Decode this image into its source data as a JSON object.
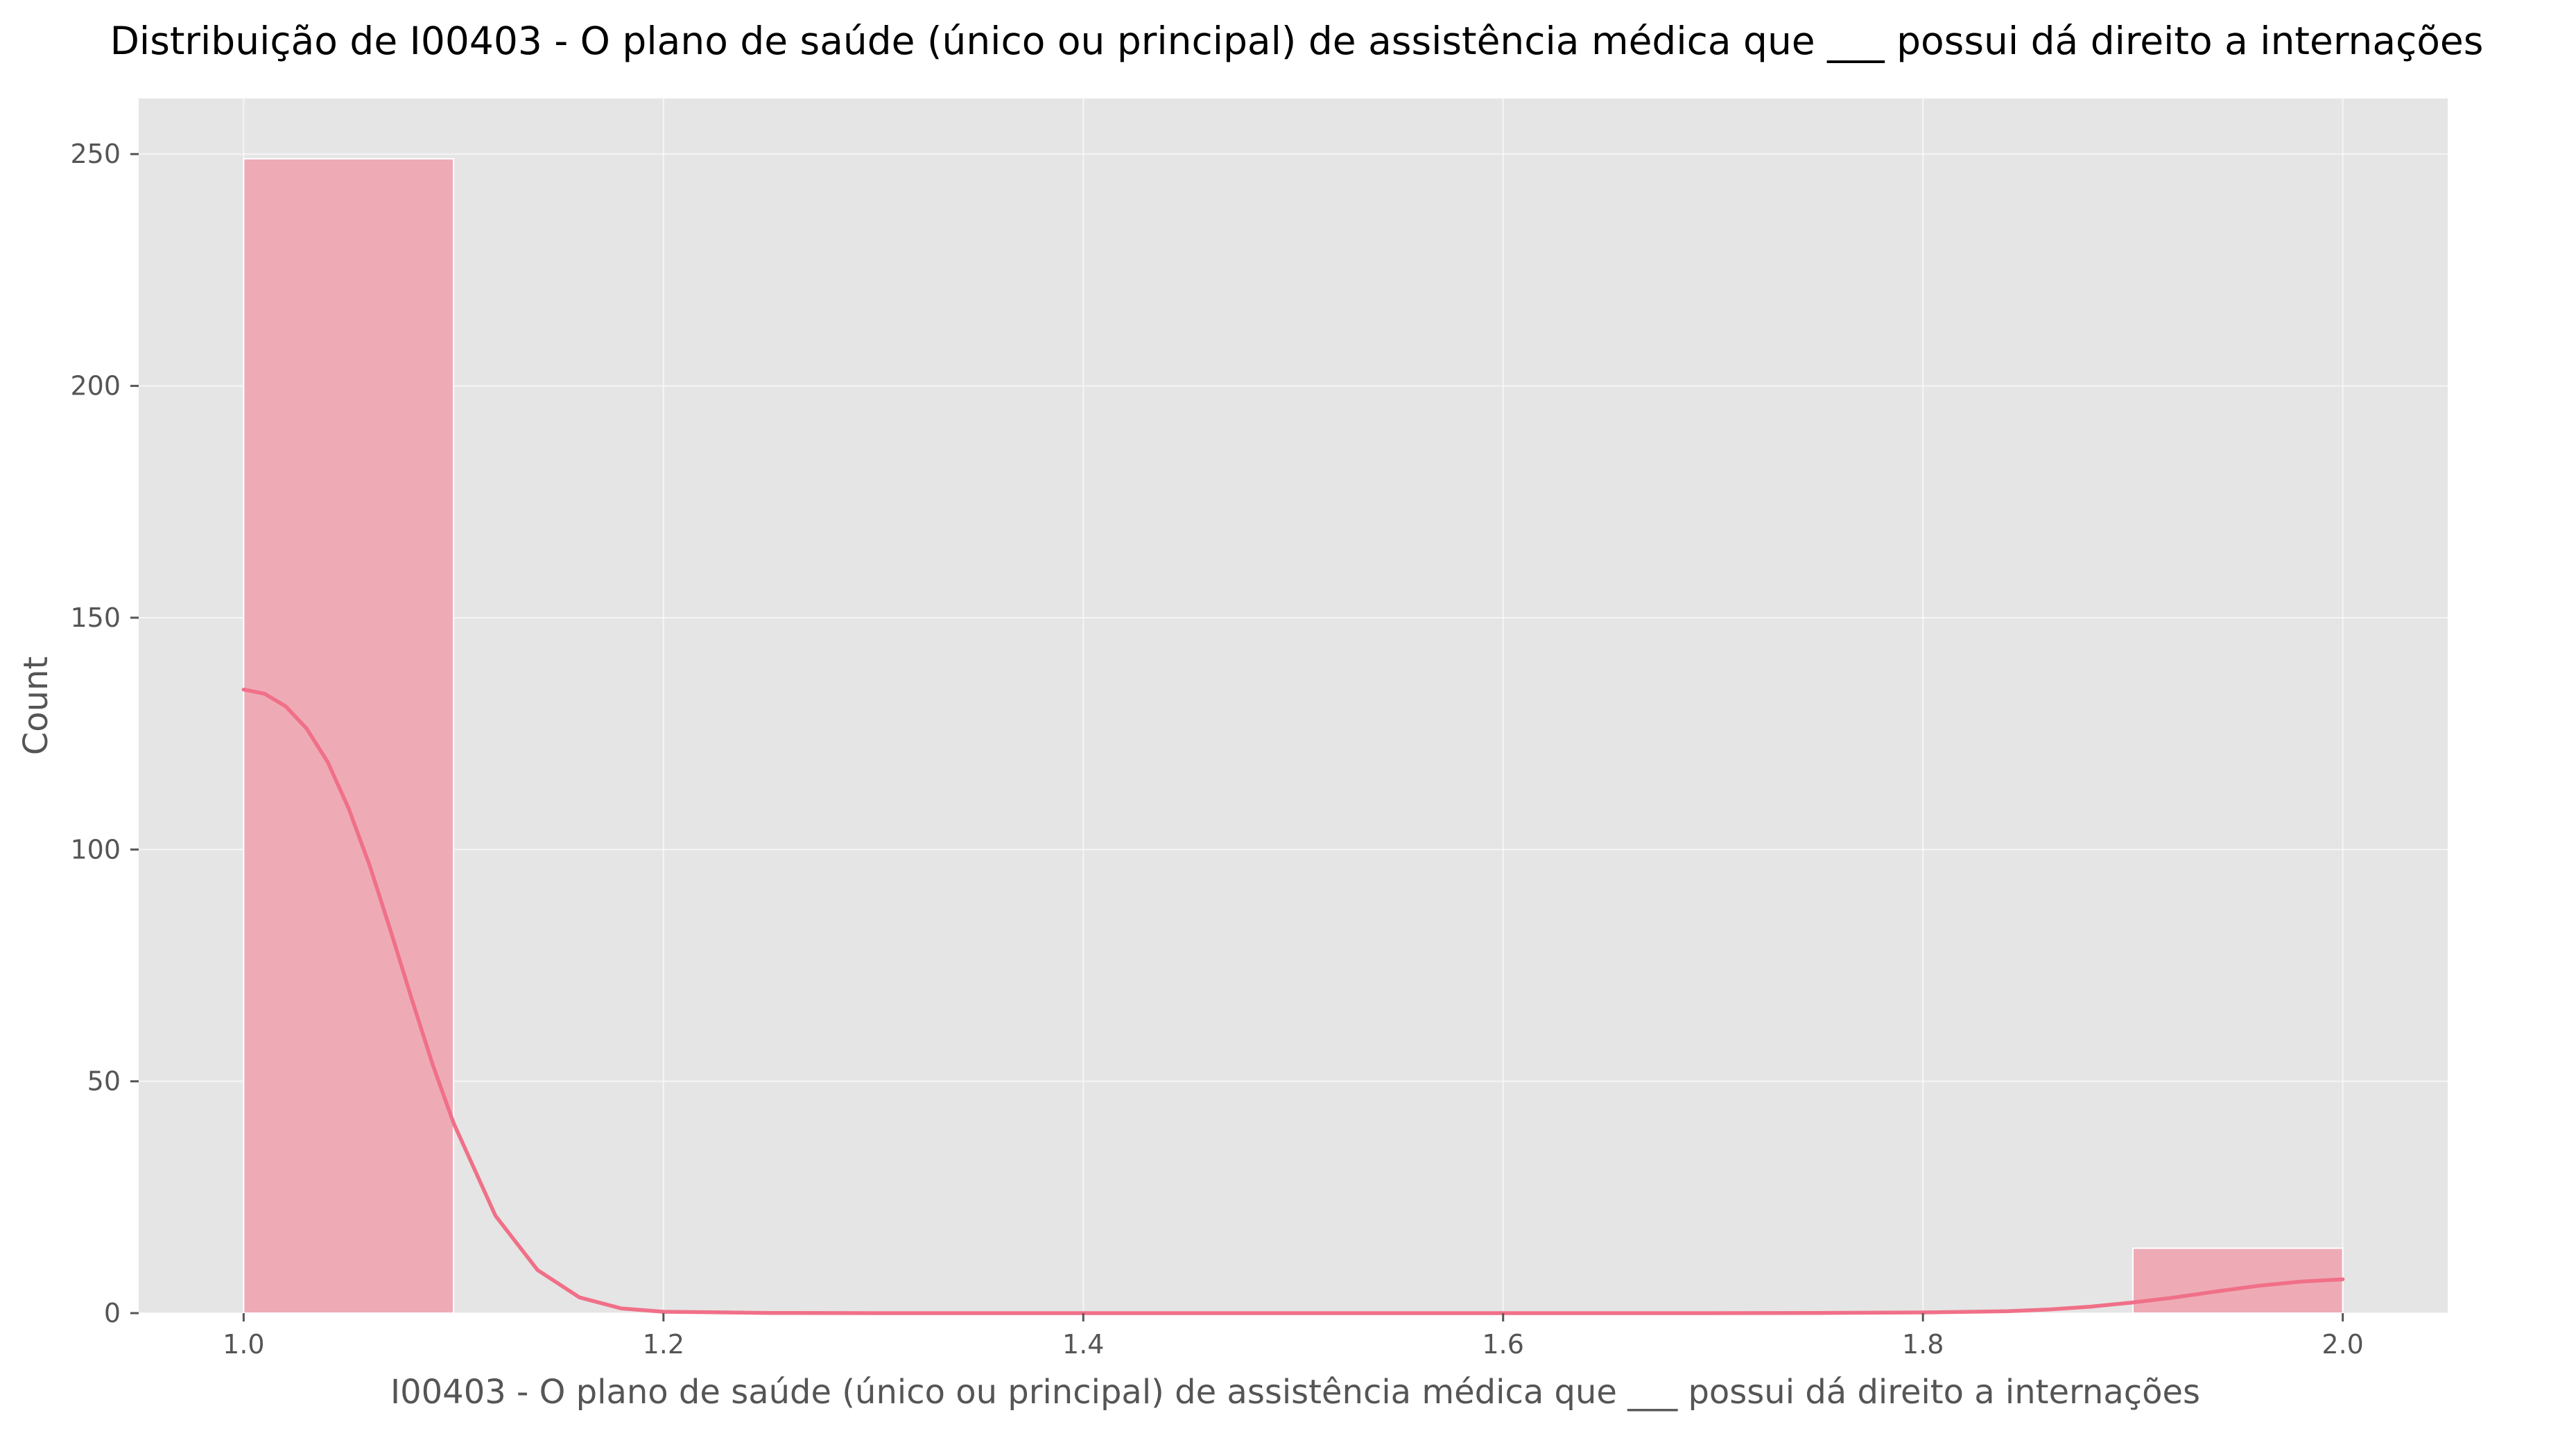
{
  "chart_data": {
    "type": "bar",
    "title": "Distribuição de I00403 - O plano de saúde (único ou principal) de assistência médica que ___ possui dá direito a internações",
    "xlabel": "I00403 - O plano de saúde (único ou principal) de assistência médica que ___ possui dá direito a internações",
    "ylabel": "Count",
    "xlim": [
      0.95,
      2.05
    ],
    "ylim": [
      0,
      262
    ],
    "x_ticks": [
      1.0,
      1.2,
      1.4,
      1.6,
      1.8,
      2.0
    ],
    "x_tick_labels": [
      "1.0",
      "1.2",
      "1.4",
      "1.6",
      "1.8",
      "2.0"
    ],
    "y_ticks": [
      0,
      50,
      100,
      150,
      200,
      250
    ],
    "y_tick_labels": [
      "0",
      "50",
      "100",
      "150",
      "200",
      "250"
    ],
    "grid": true,
    "bins": [
      {
        "x0": 1.0,
        "x1": 1.1,
        "count": 249
      },
      {
        "x0": 1.9,
        "x1": 2.0,
        "count": 14
      }
    ],
    "kde_points": [
      [
        1.0,
        134.5
      ],
      [
        1.01,
        133.6
      ],
      [
        1.02,
        130.9
      ],
      [
        1.03,
        126.1
      ],
      [
        1.04,
        118.9
      ],
      [
        1.05,
        108.9
      ],
      [
        1.06,
        96.6
      ],
      [
        1.07,
        82.5
      ],
      [
        1.08,
        67.9
      ],
      [
        1.09,
        53.7
      ],
      [
        1.1,
        41.0
      ],
      [
        1.12,
        21.0
      ],
      [
        1.14,
        9.3
      ],
      [
        1.16,
        3.4
      ],
      [
        1.18,
        1.0
      ],
      [
        1.2,
        0.3
      ],
      [
        1.25,
        0.05
      ],
      [
        1.3,
        0.0
      ],
      [
        1.4,
        0.0
      ],
      [
        1.5,
        0.0
      ],
      [
        1.6,
        0.0
      ],
      [
        1.7,
        0.0
      ],
      [
        1.75,
        0.05
      ],
      [
        1.8,
        0.15
      ],
      [
        1.84,
        0.4
      ],
      [
        1.86,
        0.8
      ],
      [
        1.88,
        1.4
      ],
      [
        1.9,
        2.3
      ],
      [
        1.92,
        3.4
      ],
      [
        1.94,
        4.7
      ],
      [
        1.96,
        5.9
      ],
      [
        1.98,
        6.8
      ],
      [
        2.0,
        7.3
      ]
    ],
    "colors": {
      "bar_fill": "#eeabb6",
      "bar_edge": "#ffffff",
      "kde_line": "#f07088",
      "plot_bg": "#e5e5e5",
      "grid": "#ffffff",
      "tick": "#555555"
    }
  }
}
